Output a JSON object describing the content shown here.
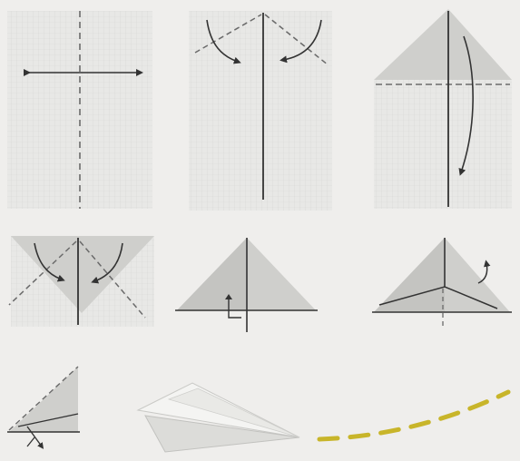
{
  "figure": {
    "steps": [
      {
        "kind": "fold-in-half-crease"
      },
      {
        "kind": "fold-top-corners-to-center"
      },
      {
        "kind": "fold-triangle-down"
      },
      {
        "kind": "fold-corners-to-center"
      },
      {
        "kind": "fold-in-half"
      },
      {
        "kind": "fold-wings-down"
      },
      {
        "kind": "fold-wing-edge"
      },
      {
        "kind": "finished-plane-flight"
      }
    ],
    "colors": {
      "background": "#efeeec",
      "paper": "#e6e6e3",
      "paper_shade": "#cfcfcc",
      "grid": "#d8d8d5",
      "line": "#3a3a3a",
      "dash": "#6a6a6a",
      "flight_path": "#c8b52a"
    }
  }
}
